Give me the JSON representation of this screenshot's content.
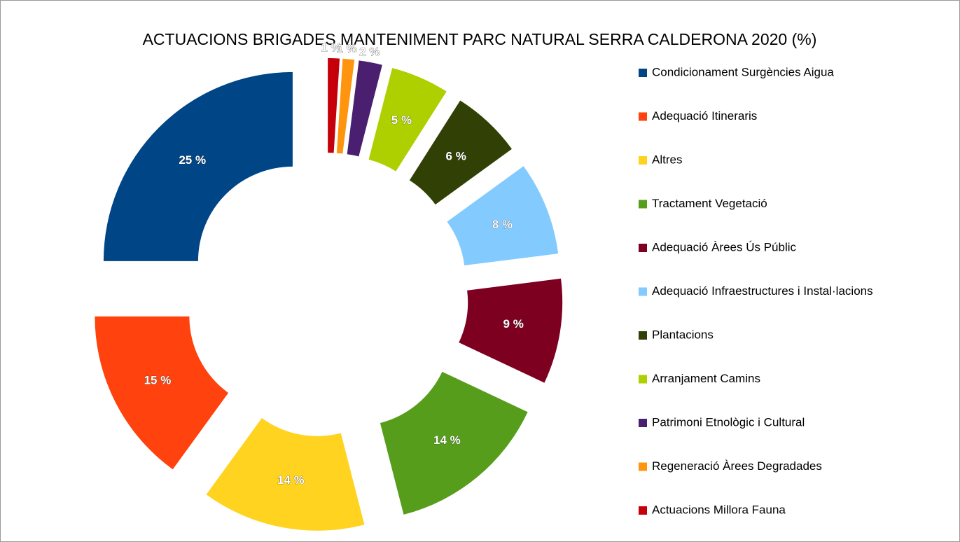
{
  "chart_data": {
    "type": "donut",
    "title": "ACTUACIONS BRIGADES MANTENIMENT PARC NATURAL SERRA CALDERONA 2020 (%)",
    "categories": [
      "Condicionament Surgències Aigua",
      "Adequació Itineraris",
      "Altres",
      "Tractament Vegetació",
      "Adequació Àrees Ús Públic",
      "Adequació Infraestructures i Instal·lacions",
      "Plantacions",
      "Arranjament Camins",
      "Patrimoni Etnològic i Cultural",
      "Regeneració Àrees Degradades",
      "Actuacions Millora Fauna"
    ],
    "values": [
      25,
      15,
      14,
      14,
      9,
      8,
      6,
      5,
      2,
      1,
      1
    ],
    "value_labels": [
      "25 %",
      "15 %",
      "14 %",
      "14 %",
      "9 %",
      "8 %",
      "6 %",
      "5 %",
      "2 %",
      "1 %",
      "1 %"
    ],
    "colors": [
      "#004586",
      "#ff420e",
      "#ffd320",
      "#579d1c",
      "#7e0021",
      "#83caff",
      "#314004",
      "#aecf00",
      "#4b1f6f",
      "#ff950e",
      "#c5000b"
    ],
    "legend": "right"
  }
}
